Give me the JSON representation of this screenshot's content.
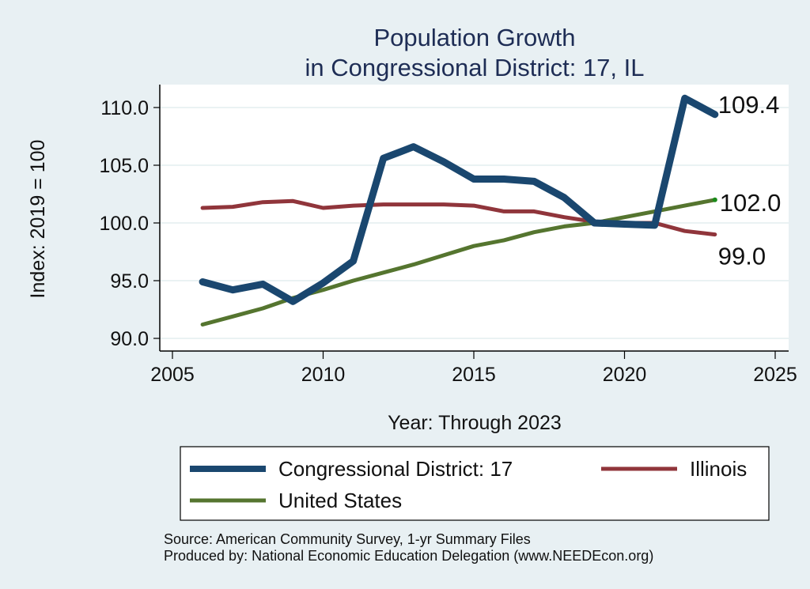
{
  "chart_data": {
    "type": "line",
    "title": [
      "Population Growth",
      "in Congressional District: 17, IL"
    ],
    "xlabel": "Year: Through 2023",
    "ylabel": "Index: 2019 = 100",
    "xlim": [
      2004.5,
      2025.5
    ],
    "ylim": [
      89.0,
      112.0
    ],
    "xticks": [
      2005,
      2010,
      2015,
      2020,
      2025
    ],
    "xtick_labels": [
      "2005",
      "2010",
      "2015",
      "2020",
      "2025"
    ],
    "yticks": [
      90,
      95,
      100,
      105,
      110
    ],
    "ytick_labels": [
      "90.0",
      "95.0",
      "100.0",
      "105.0",
      "110.0"
    ],
    "grid": "horizontal",
    "x": [
      2006,
      2007,
      2008,
      2009,
      2010,
      2011,
      2012,
      2013,
      2014,
      2015,
      2016,
      2017,
      2018,
      2019,
      2020,
      2021,
      2022,
      2023
    ],
    "series": [
      {
        "name": "Congressional District: 17",
        "color": "#1a476f",
        "values": [
          94.9,
          94.2,
          94.7,
          93.2,
          94.8,
          96.7,
          105.6,
          106.6,
          105.3,
          103.8,
          103.8,
          103.6,
          102.2,
          100.0,
          99.9,
          99.8,
          110.8,
          109.4
        ],
        "end_label": "109.4"
      },
      {
        "name": "Illinois",
        "color": "#90353b",
        "values": [
          101.3,
          101.4,
          101.8,
          101.9,
          101.3,
          101.5,
          101.6,
          101.6,
          101.6,
          101.5,
          101.0,
          101.0,
          100.5,
          100.1,
          100.0,
          100.0,
          99.3,
          99.0
        ],
        "end_label": "99.0"
      },
      {
        "name": "United States",
        "color": "#55752f",
        "values": [
          91.2,
          91.9,
          92.6,
          93.5,
          94.2,
          95.0,
          95.7,
          96.4,
          97.2,
          98.0,
          98.5,
          99.2,
          99.7,
          100.0,
          100.5,
          101.0,
          101.5,
          102.0
        ],
        "end_label": "102.0"
      }
    ],
    "legend": {
      "placement": "bottom",
      "entries": [
        "Congressional District: 17",
        "Illinois",
        "United States"
      ]
    },
    "notes": [
      "Source: American Community Survey, 1-yr Summary Files",
      "Produced by: National Economic Education Delegation (www.NEEDEcon.org)"
    ]
  },
  "colors": {
    "background": "#e8f0f3",
    "plot_background": "#ffffff",
    "grid": "#eaf2f3",
    "title": "#1e2d55"
  }
}
